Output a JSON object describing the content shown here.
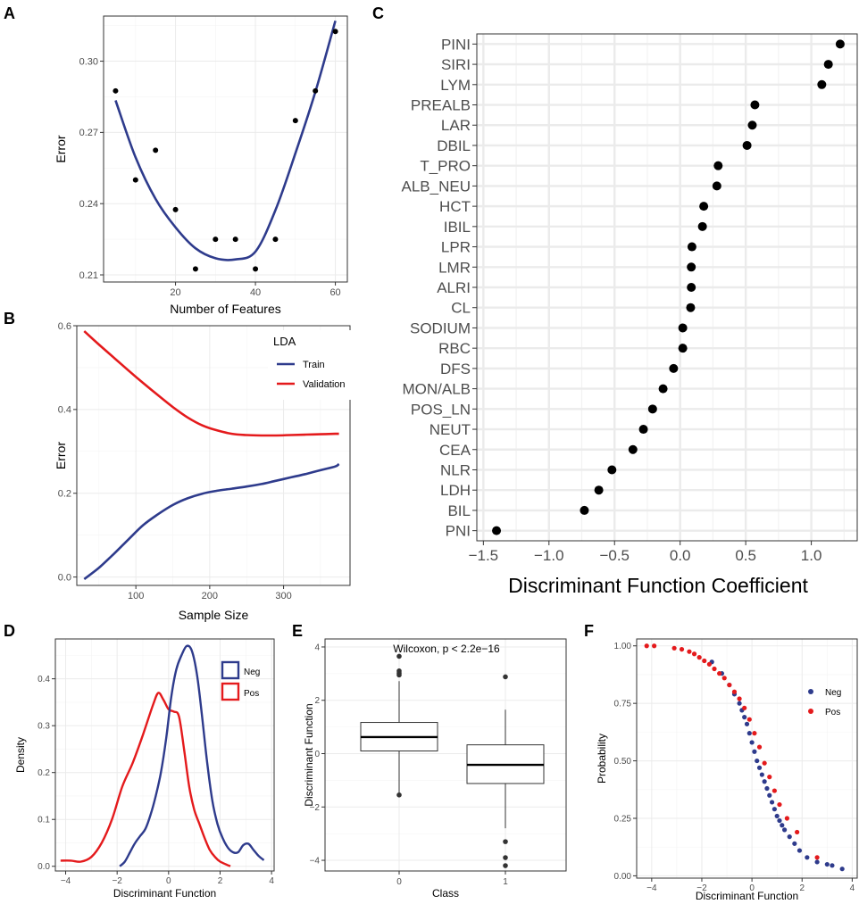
{
  "colors": {
    "navy": "#2e3b8c",
    "red": "#e41a1c",
    "black": "#000000"
  },
  "panels": {
    "A": {
      "label": "A"
    },
    "B": {
      "label": "B"
    },
    "C": {
      "label": "C"
    },
    "D": {
      "label": "D"
    },
    "E": {
      "label": "E"
    },
    "F": {
      "label": "F"
    }
  },
  "chart_data": [
    {
      "panel": "A",
      "type": "scatter",
      "xlabel": "Number of Features",
      "ylabel": "Error",
      "xlim": [
        2,
        63
      ],
      "ylim": [
        0.207,
        0.319
      ],
      "xticks": [
        20,
        40,
        60
      ],
      "yticks": [
        0.21,
        0.24,
        0.27,
        0.3
      ],
      "ytick_labels": [
        "0.21",
        "0.24",
        "0.27",
        "0.30"
      ],
      "points": {
        "x": [
          5,
          10,
          15,
          20,
          25,
          30,
          35,
          40,
          45,
          50,
          55,
          60
        ],
        "y": [
          0.2875,
          0.25,
          0.2625,
          0.2375,
          0.2125,
          0.225,
          0.225,
          0.2125,
          0.225,
          0.275,
          0.2875,
          0.3125
        ]
      },
      "smooth": {
        "x": [
          5,
          10,
          15,
          20,
          25,
          30,
          35,
          40,
          45,
          50,
          55,
          60
        ],
        "y": [
          0.2835,
          0.2595,
          0.242,
          0.23,
          0.2212,
          0.217,
          0.2165,
          0.2198,
          0.2372,
          0.2612,
          0.2871,
          0.317
        ]
      }
    },
    {
      "panel": "B",
      "type": "line",
      "xlabel": "Sample Size",
      "ylabel": "Error",
      "xlim": [
        20,
        390
      ],
      "ylim": [
        -0.02,
        0.6
      ],
      "xticks": [
        100,
        200,
        300
      ],
      "yticks": [
        0.0,
        0.2,
        0.4,
        0.6
      ],
      "ytick_labels": [
        "0.0",
        "0.2",
        "0.4",
        "0.6"
      ],
      "legend": {
        "title": "LDA",
        "position": "top-right"
      },
      "series": [
        {
          "name": "Train",
          "color": "#2e3b8c",
          "x": [
            30,
            50,
            70,
            90,
            110,
            130,
            150,
            170,
            190,
            210,
            230,
            250,
            270,
            290,
            310,
            330,
            350,
            370,
            375
          ],
          "y": [
            -0.005,
            0.022,
            0.055,
            0.09,
            0.124,
            0.15,
            0.172,
            0.188,
            0.199,
            0.206,
            0.211,
            0.216,
            0.222,
            0.23,
            0.238,
            0.246,
            0.255,
            0.264,
            0.27
          ]
        },
        {
          "name": "Validation",
          "color": "#e41a1c",
          "x": [
            30,
            50,
            70,
            90,
            110,
            130,
            150,
            170,
            190,
            210,
            230,
            250,
            270,
            290,
            310,
            330,
            350,
            370,
            375
          ],
          "y": [
            0.587,
            0.555,
            0.524,
            0.493,
            0.463,
            0.434,
            0.406,
            0.381,
            0.362,
            0.35,
            0.342,
            0.339,
            0.338,
            0.338,
            0.339,
            0.34,
            0.341,
            0.342,
            0.342
          ]
        }
      ]
    },
    {
      "panel": "C",
      "type": "dot",
      "xlabel": "Discriminant Function Coefficient",
      "xlim": [
        -1.55,
        1.35
      ],
      "xticks": [
        -1.5,
        -1.0,
        -0.5,
        0.0,
        0.5,
        1.0
      ],
      "xtick_labels": [
        "−1.5",
        "−1.0",
        "−0.5",
        "0.0",
        "0.5",
        "1.0"
      ],
      "categories": [
        "PINI",
        "SIRI",
        "LYM",
        "PREALB",
        "LAR",
        "DBIL",
        "T_PRO",
        "ALB_NEU",
        "HCT",
        "IBIL",
        "LPR",
        "LMR",
        "ALRI",
        "CL",
        "SODIUM",
        "RBC",
        "DFS",
        "MON/ALB",
        "POS_LN",
        "NEUT",
        "CEA",
        "NLR",
        "LDH",
        "BIL",
        "PNI"
      ],
      "values": [
        1.22,
        1.13,
        1.08,
        0.57,
        0.55,
        0.51,
        0.29,
        0.28,
        0.18,
        0.17,
        0.09,
        0.085,
        0.085,
        0.08,
        0.02,
        0.02,
        -0.05,
        -0.13,
        -0.21,
        -0.28,
        -0.36,
        -0.52,
        -0.62,
        -0.73,
        -1.4
      ]
    },
    {
      "panel": "D",
      "type": "density",
      "xlabel": "Discriminant Function",
      "ylabel": "Density",
      "xlim": [
        -4.4,
        4.1
      ],
      "ylim": [
        -0.01,
        0.485
      ],
      "xticks": [
        -4,
        -2,
        0,
        2,
        4
      ],
      "yticks": [
        0.0,
        0.1,
        0.2,
        0.3,
        0.4
      ],
      "xtick_labels": [
        "−4",
        "−2",
        "0",
        "2",
        "4"
      ],
      "ytick_labels": [
        "0.0",
        "0.1",
        "0.2",
        "0.3",
        "0.4"
      ],
      "legend": {
        "position": "top-right"
      },
      "series": [
        {
          "name": "Neg",
          "color": "#2e3b8c",
          "x": [
            -1.9,
            -1.7,
            -1.5,
            -1.3,
            -1.1,
            -0.9,
            -0.7,
            -0.5,
            -0.3,
            -0.1,
            0.1,
            0.3,
            0.5,
            0.7,
            0.9,
            1.1,
            1.3,
            1.5,
            1.7,
            1.9,
            2.1,
            2.3,
            2.5,
            2.7,
            2.9,
            3.1,
            3.3,
            3.5,
            3.7
          ],
          "y": [
            0.0,
            0.01,
            0.03,
            0.05,
            0.065,
            0.08,
            0.11,
            0.15,
            0.2,
            0.27,
            0.36,
            0.42,
            0.45,
            0.47,
            0.46,
            0.41,
            0.32,
            0.22,
            0.14,
            0.09,
            0.06,
            0.04,
            0.03,
            0.03,
            0.045,
            0.048,
            0.035,
            0.022,
            0.013
          ]
        },
        {
          "name": "Pos",
          "color": "#e41a1c",
          "x": [
            -4.2,
            -3.8,
            -3.4,
            -3.0,
            -2.6,
            -2.2,
            -1.8,
            -1.4,
            -1.0,
            -0.6,
            -0.4,
            -0.2,
            0.0,
            0.2,
            0.4,
            0.6,
            0.8,
            1.0,
            1.2,
            1.4,
            1.6,
            1.8,
            2.0,
            2.4
          ],
          "y": [
            0.012,
            0.012,
            0.01,
            0.02,
            0.05,
            0.1,
            0.17,
            0.22,
            0.28,
            0.345,
            0.37,
            0.355,
            0.335,
            0.33,
            0.32,
            0.25,
            0.17,
            0.12,
            0.09,
            0.06,
            0.035,
            0.02,
            0.01,
            0.0
          ]
        }
      ]
    },
    {
      "panel": "E",
      "type": "boxplot",
      "xlabel": "Class",
      "ylabel": "Discriminant Function",
      "annotation": "Wilcoxon, p < 2.2e−16",
      "ylim": [
        -4.4,
        4.3
      ],
      "yticks": [
        -4,
        -2,
        0,
        2,
        4
      ],
      "ytick_labels": [
        "−4",
        "−2",
        "0",
        "2",
        "4"
      ],
      "categories": [
        "0",
        "1"
      ],
      "boxes": [
        {
          "class": "0",
          "min": -1.5,
          "q1": 0.1,
          "median": 0.62,
          "q3": 1.17,
          "max": 2.72,
          "outliers": [
            -1.55,
            2.95,
            3.02,
            3.1,
            3.65
          ]
        },
        {
          "class": "1",
          "min": -2.8,
          "q1": -1.12,
          "median": -0.42,
          "q3": 0.33,
          "max": 1.65,
          "outliers": [
            2.88,
            -3.3,
            -3.9,
            -4.2
          ]
        }
      ]
    },
    {
      "panel": "F",
      "type": "scatter",
      "xlabel": "Discriminant Function",
      "ylabel": "Probability",
      "xlim": [
        -4.6,
        4.2
      ],
      "ylim": [
        -0.01,
        1.03
      ],
      "xticks": [
        -4,
        -2,
        0,
        2,
        4
      ],
      "yticks": [
        0.0,
        0.25,
        0.5,
        0.75,
        1.0
      ],
      "xtick_labels": [
        "−4",
        "−2",
        "0",
        "2",
        "4"
      ],
      "ytick_labels": [
        "0.00",
        "0.25",
        "0.50",
        "0.75",
        "1.00"
      ],
      "legend": {
        "position": "top-right"
      },
      "series": [
        {
          "name": "Neg",
          "color": "#2e3b8c",
          "x": [
            -1.6,
            -1.2,
            -0.9,
            -0.7,
            -0.5,
            -0.4,
            -0.3,
            -0.2,
            -0.1,
            0.0,
            0.1,
            0.2,
            0.3,
            0.4,
            0.5,
            0.6,
            0.7,
            0.8,
            0.9,
            1.0,
            1.1,
            1.2,
            1.3,
            1.5,
            1.7,
            1.9,
            2.2,
            2.6,
            3.0,
            3.2,
            3.6
          ],
          "y": [
            0.93,
            0.88,
            0.83,
            0.79,
            0.75,
            0.72,
            0.69,
            0.66,
            0.62,
            0.58,
            0.54,
            0.5,
            0.47,
            0.44,
            0.41,
            0.38,
            0.35,
            0.32,
            0.29,
            0.26,
            0.24,
            0.22,
            0.2,
            0.17,
            0.14,
            0.11,
            0.08,
            0.06,
            0.05,
            0.045,
            0.03
          ]
        },
        {
          "name": "Pos",
          "color": "#e41a1c",
          "x": [
            -4.2,
            -3.9,
            -3.1,
            -2.8,
            -2.5,
            -2.3,
            -2.1,
            -1.9,
            -1.7,
            -1.5,
            -1.3,
            -1.1,
            -0.9,
            -0.7,
            -0.5,
            -0.3,
            -0.1,
            0.1,
            0.3,
            0.5,
            0.7,
            0.9,
            1.1,
            1.4,
            1.8,
            2.6
          ],
          "y": [
            1.0,
            1.0,
            0.99,
            0.985,
            0.975,
            0.965,
            0.95,
            0.935,
            0.92,
            0.9,
            0.88,
            0.86,
            0.83,
            0.8,
            0.77,
            0.73,
            0.68,
            0.62,
            0.56,
            0.49,
            0.43,
            0.37,
            0.31,
            0.25,
            0.19,
            0.08
          ]
        }
      ]
    }
  ]
}
